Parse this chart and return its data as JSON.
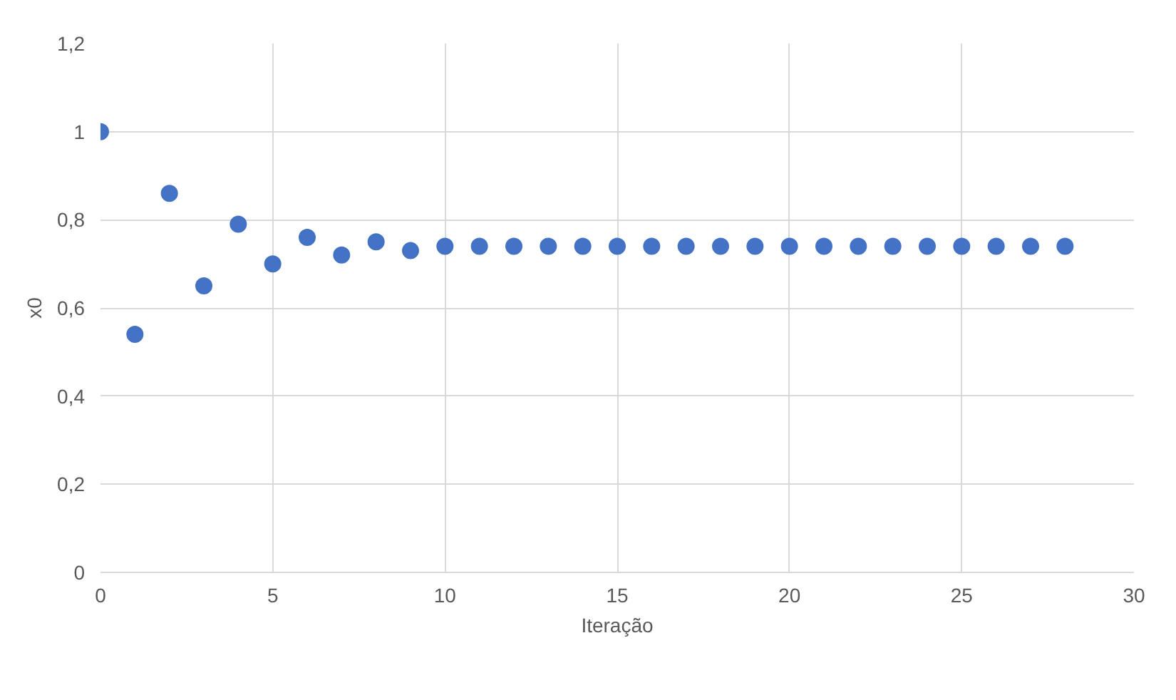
{
  "chart_data": {
    "type": "scatter",
    "xlabel": "Iteração",
    "ylabel": "x0",
    "x": [
      0,
      1,
      2,
      3,
      4,
      5,
      6,
      7,
      8,
      9,
      10,
      11,
      12,
      13,
      14,
      15,
      16,
      17,
      18,
      19,
      20,
      21,
      22,
      23,
      24,
      25,
      26,
      27,
      28
    ],
    "series": [
      {
        "color": "#4472c4",
        "values": [
          1,
          0.54,
          0.86,
          0.65,
          0.79,
          0.7,
          0.76,
          0.72,
          0.75,
          0.73,
          0.74,
          0.74,
          0.74,
          0.74,
          0.74,
          0.74,
          0.74,
          0.74,
          0.74,
          0.74,
          0.74,
          0.74,
          0.74,
          0.74,
          0.74,
          0.74,
          0.74,
          0.74,
          0.74
        ]
      }
    ],
    "xlim": [
      0,
      30
    ],
    "xticks": [
      0,
      5,
      10,
      15,
      20,
      25,
      30
    ],
    "ylim": [
      0,
      1.2
    ],
    "yticks": [
      0,
      {
        "value": 0.2,
        "label": "0,2"
      },
      {
        "value": 0.4,
        "label": "0,4"
      },
      {
        "value": 0.6,
        "label": "0,6"
      },
      {
        "value": 0.8,
        "label": "0,8"
      },
      1,
      {
        "value": 1.2,
        "label": "1,2"
      }
    ],
    "grid": true,
    "marker": "circle"
  }
}
